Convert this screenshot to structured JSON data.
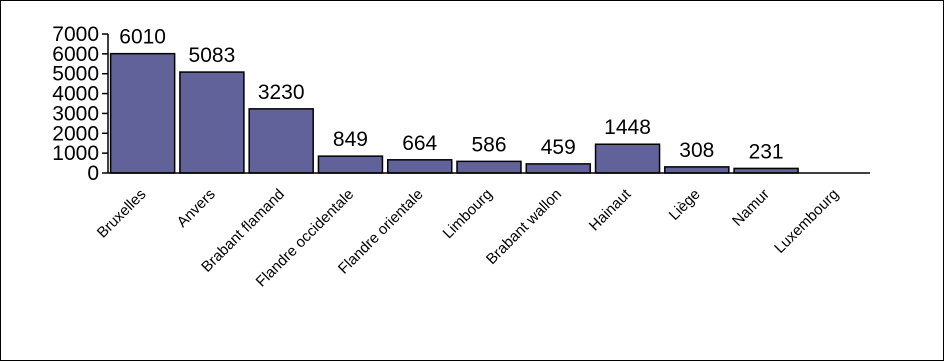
{
  "chart_data": {
    "type": "bar",
    "title": "",
    "xlabel": "",
    "ylabel": "",
    "ylim": [
      0,
      7000
    ],
    "yticks": [
      0,
      1000,
      2000,
      3000,
      4000,
      5000,
      6000,
      7000
    ],
    "grid": false,
    "legend": "none",
    "bar_color": "#62629a",
    "categories": [
      "Bruxelles",
      "Anvers",
      "Brabant flamand",
      "Flandre occidentale",
      "Flandre orientale",
      "Limbourg",
      "Brabant wallon",
      "Hainaut",
      "Liège",
      "Namur",
      "Luxembourg"
    ],
    "values": [
      6010,
      5083,
      3230,
      849,
      664,
      586,
      459,
      1448,
      308,
      231,
      null
    ],
    "data_labels": [
      "6010",
      "5083",
      "3230",
      "849",
      "664",
      "586",
      "459",
      "1448",
      "308",
      "231",
      ""
    ]
  }
}
